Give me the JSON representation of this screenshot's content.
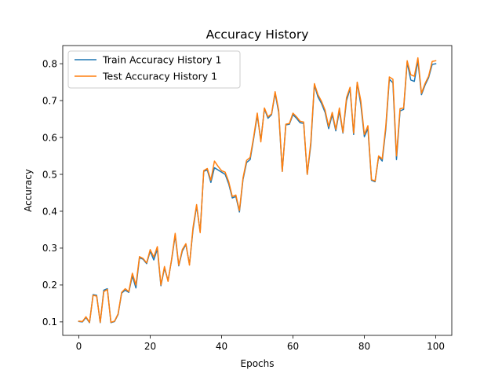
{
  "chart_data": {
    "type": "line",
    "title": "Accuracy History",
    "xlabel": "Epochs",
    "ylabel": "Accuracy",
    "xlim": [
      -4.5,
      104.5
    ],
    "ylim": [
      0.0635,
      0.8492
    ],
    "x_ticks": [
      0,
      20,
      40,
      60,
      80,
      100
    ],
    "y_ticks": [
      0.1,
      0.2,
      0.3,
      0.4,
      0.5,
      0.6,
      0.7,
      0.8
    ],
    "legend_position": "top-left",
    "grid": false,
    "x": [
      0,
      1,
      2,
      3,
      4,
      5,
      6,
      7,
      8,
      9,
      10,
      11,
      12,
      13,
      14,
      15,
      16,
      17,
      18,
      19,
      20,
      21,
      22,
      23,
      24,
      25,
      26,
      27,
      28,
      29,
      30,
      31,
      32,
      33,
      34,
      35,
      36,
      37,
      38,
      39,
      40,
      41,
      42,
      43,
      44,
      45,
      46,
      47,
      48,
      49,
      50,
      51,
      52,
      53,
      54,
      55,
      56,
      57,
      58,
      59,
      60,
      61,
      62,
      63,
      64,
      65,
      66,
      67,
      68,
      69,
      70,
      71,
      72,
      73,
      74,
      75,
      76,
      77,
      78,
      79,
      80,
      81,
      82,
      83,
      84,
      85,
      86,
      87,
      88,
      89,
      90,
      91,
      92,
      93,
      94,
      95,
      96,
      97,
      98,
      99,
      100
    ],
    "series": [
      {
        "name": "Train Accuracy History 1",
        "color": "#1f77b4",
        "values": [
          0.101,
          0.1,
          0.112,
          0.098,
          0.174,
          0.172,
          0.098,
          0.186,
          0.19,
          0.098,
          0.101,
          0.12,
          0.178,
          0.186,
          0.18,
          0.225,
          0.192,
          0.274,
          0.27,
          0.258,
          0.292,
          0.268,
          0.298,
          0.198,
          0.246,
          0.212,
          0.268,
          0.335,
          0.252,
          0.292,
          0.31,
          0.256,
          0.35,
          0.414,
          0.345,
          0.508,
          0.512,
          0.478,
          0.518,
          0.512,
          0.506,
          0.5,
          0.474,
          0.436,
          0.44,
          0.398,
          0.486,
          0.532,
          0.54,
          0.598,
          0.66,
          0.592,
          0.678,
          0.652,
          0.662,
          0.72,
          0.668,
          0.508,
          0.634,
          0.636,
          0.662,
          0.652,
          0.64,
          0.638,
          0.5,
          0.58,
          0.742,
          0.71,
          0.692,
          0.668,
          0.624,
          0.662,
          0.618,
          0.672,
          0.612,
          0.7,
          0.732,
          0.608,
          0.748,
          0.69,
          0.602,
          0.624,
          0.484,
          0.48,
          0.548,
          0.536,
          0.622,
          0.758,
          0.748,
          0.54,
          0.672,
          0.676,
          0.804,
          0.756,
          0.752,
          0.808,
          0.716,
          0.742,
          0.762,
          0.798,
          0.8
        ]
      },
      {
        "name": "Test Accuracy History 1",
        "color": "#ff7f0e",
        "values": [
          0.102,
          0.101,
          0.114,
          0.099,
          0.172,
          0.17,
          0.099,
          0.182,
          0.188,
          0.099,
          0.102,
          0.122,
          0.18,
          0.19,
          0.182,
          0.232,
          0.2,
          0.277,
          0.272,
          0.26,
          0.296,
          0.276,
          0.304,
          0.2,
          0.25,
          0.21,
          0.27,
          0.34,
          0.254,
          0.296,
          0.312,
          0.254,
          0.356,
          0.418,
          0.342,
          0.51,
          0.516,
          0.484,
          0.536,
          0.522,
          0.51,
          0.506,
          0.48,
          0.44,
          0.444,
          0.402,
          0.49,
          0.538,
          0.546,
          0.602,
          0.666,
          0.588,
          0.68,
          0.656,
          0.664,
          0.724,
          0.674,
          0.508,
          0.636,
          0.638,
          0.666,
          0.656,
          0.644,
          0.642,
          0.5,
          0.588,
          0.746,
          0.716,
          0.698,
          0.674,
          0.63,
          0.668,
          0.622,
          0.68,
          0.614,
          0.708,
          0.736,
          0.612,
          0.75,
          0.7,
          0.608,
          0.632,
          0.486,
          0.482,
          0.55,
          0.542,
          0.63,
          0.764,
          0.758,
          0.55,
          0.678,
          0.68,
          0.808,
          0.77,
          0.766,
          0.816,
          0.72,
          0.746,
          0.766,
          0.806,
          0.808
        ]
      }
    ]
  }
}
